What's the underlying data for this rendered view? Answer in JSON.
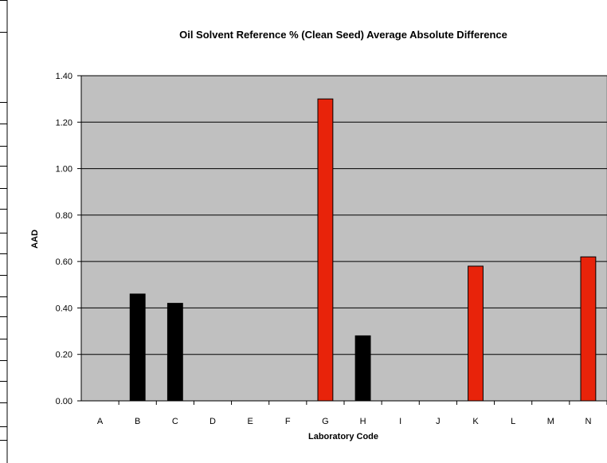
{
  "chart_data": {
    "type": "bar",
    "title": "Oil Solvent Reference % (Clean Seed) Average Absolute Difference",
    "xlabel": "Laboratory Code",
    "ylabel": "AAD",
    "categories": [
      "A",
      "B",
      "C",
      "D",
      "E",
      "F",
      "G",
      "H",
      "I",
      "J",
      "K",
      "L",
      "M",
      "N"
    ],
    "values": [
      null,
      0.46,
      0.42,
      null,
      null,
      null,
      1.3,
      0.28,
      null,
      null,
      0.58,
      null,
      null,
      0.62
    ],
    "bar_colors": [
      "#000000",
      "#000000",
      "#000000",
      "#000000",
      "#000000",
      "#000000",
      "#e8230a",
      "#000000",
      "#000000",
      "#000000",
      "#e8230a",
      "#000000",
      "#000000",
      "#e8230a"
    ],
    "ylim": [
      0,
      1.4
    ],
    "ytick_labels": [
      "0.00",
      "0.20",
      "0.40",
      "0.60",
      "0.80",
      "1.00",
      "1.20",
      "1.40"
    ],
    "grid": true,
    "legend": "none",
    "plot_background": "#c0c0c0"
  }
}
